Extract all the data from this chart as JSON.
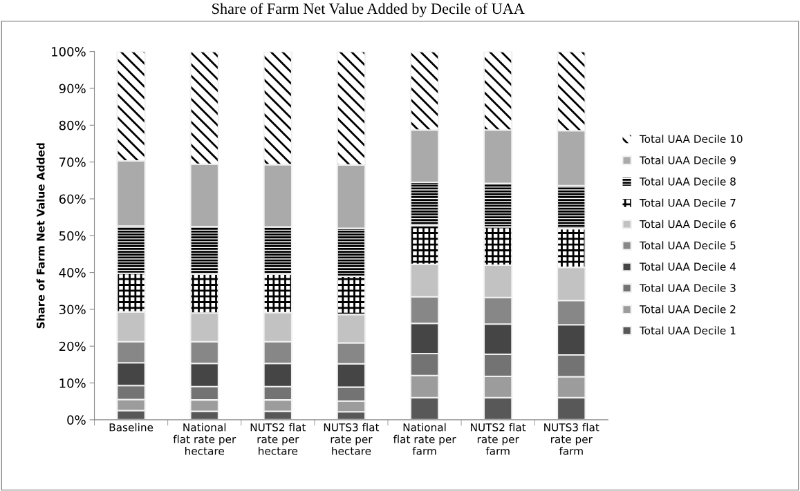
{
  "chart_data": {
    "type": "bar",
    "stacked": true,
    "title": "Share of Farm Net Value Added by Decile of UAA",
    "ylabel": "Share of Farm Net Value Added",
    "categories": [
      "Baseline",
      "National\nflat rate per\nhectare",
      "NUTS2 flat\nrate per\nhectare",
      "NUTS3 flat\nrate per\nhectare",
      "National\nflat rate per\nfarm",
      "NUTS2 flat\nrate per\nfarm",
      "NUTS3 flat\nrate per\nfarm"
    ],
    "series": [
      {
        "name": "Total UAA Decile 1",
        "color": "#585858",
        "values": [
          2.5,
          2.3,
          2.3,
          2.2,
          6.0,
          6.0,
          6.0
        ]
      },
      {
        "name": "Total UAA Decile 2",
        "color": "#9c9c9c",
        "values": [
          3.0,
          3.1,
          3.1,
          2.9,
          6.0,
          5.8,
          5.7
        ]
      },
      {
        "name": "Total UAA Decile 3",
        "color": "#737373",
        "values": [
          3.8,
          3.6,
          3.6,
          3.8,
          6.0,
          6.0,
          5.9
        ]
      },
      {
        "name": "Total UAA Decile 4",
        "color": "#454545",
        "values": [
          6.2,
          6.3,
          6.3,
          6.3,
          8.2,
          8.2,
          8.2
        ]
      },
      {
        "name": "Total UAA Decile 5",
        "color": "#878787",
        "values": [
          5.7,
          5.9,
          5.9,
          5.7,
          7.2,
          7.2,
          6.6
        ]
      },
      {
        "name": "Total UAA Decile 6",
        "color": "#c2c2c2",
        "values": [
          8.1,
          7.8,
          7.9,
          7.7,
          8.8,
          8.8,
          9.0
        ]
      },
      {
        "name": "Total UAA Decile 7",
        "color": "#000000",
        "values": [
          10.5,
          10.6,
          10.5,
          10.4,
          10.5,
          10.4,
          10.5
        ]
      },
      {
        "name": "Total UAA Decile 8",
        "color": "#000000",
        "values": [
          12.8,
          12.9,
          12.8,
          13.0,
          11.8,
          11.8,
          11.7
        ]
      },
      {
        "name": "Total UAA Decile 9",
        "color": "#aaaaaa",
        "values": [
          17.7,
          16.9,
          16.9,
          17.2,
          14.2,
          14.5,
          14.9
        ]
      },
      {
        "name": "Total UAA Decile 10",
        "color": "#000000",
        "values": [
          29.7,
          30.6,
          30.7,
          30.8,
          21.3,
          21.3,
          21.5
        ]
      }
    ],
    "ylim": [
      0,
      100
    ],
    "yticks": [
      {
        "value": 0,
        "label": "0%"
      },
      {
        "value": 10,
        "label": "10%"
      },
      {
        "value": 20,
        "label": "20%"
      },
      {
        "value": 30,
        "label": "30%"
      },
      {
        "value": 40,
        "label": "40%"
      },
      {
        "value": 50,
        "label": "50%"
      },
      {
        "value": 60,
        "label": "60%"
      },
      {
        "value": 70,
        "label": "70%"
      },
      {
        "value": 80,
        "label": "80%"
      },
      {
        "value": 90,
        "label": "90%"
      },
      {
        "value": 100,
        "label": "100%"
      }
    ],
    "grid": false,
    "legend": "right"
  }
}
